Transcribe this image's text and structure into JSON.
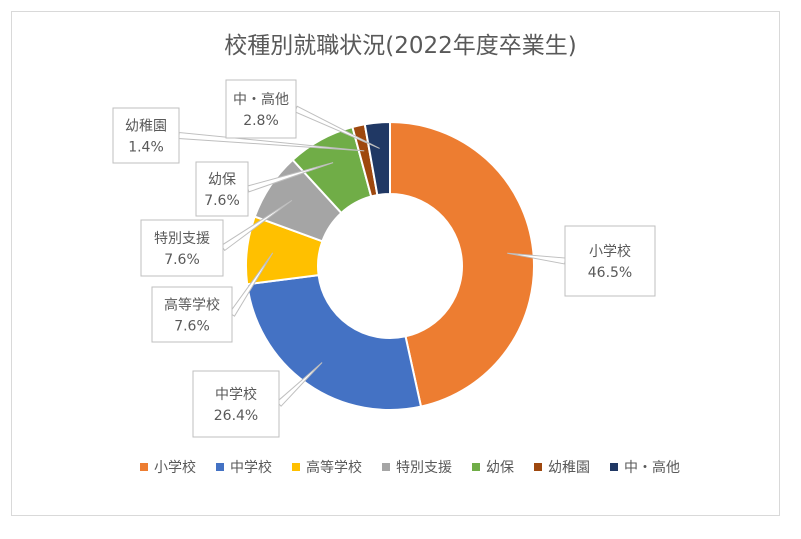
{
  "chart_data": {
    "type": "pie",
    "variant": "doughnut",
    "title": "校種別就職状況(2022年度卒業生)",
    "categories": [
      "小学校",
      "中学校",
      "高等学校",
      "特別支援",
      "幼保",
      "幼稚園",
      "中・高他"
    ],
    "values": [
      46.5,
      26.4,
      7.6,
      7.6,
      7.6,
      1.4,
      2.8
    ],
    "value_labels": [
      "46.5%",
      "26.4%",
      "7.6%",
      "7.6%",
      "7.6%",
      "1.4%",
      "2.8%"
    ],
    "colors": [
      "#ED7D31",
      "#4472C4",
      "#FFC000",
      "#A5A5A5",
      "#70AD47",
      "#9E480E",
      "#203864"
    ],
    "legend_position": "bottom",
    "unit": "%"
  }
}
